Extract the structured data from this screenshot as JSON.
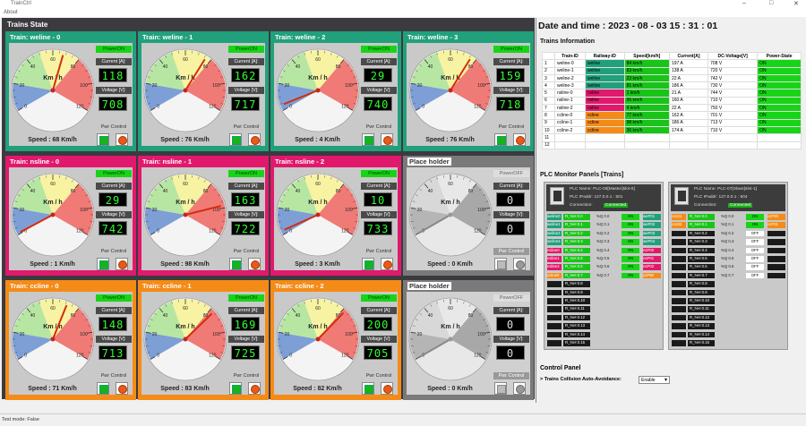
{
  "window": {
    "title": "TrainCtrl",
    "menu": "About",
    "min": "–",
    "max": "□",
    "close": "✕"
  },
  "trains_state_title": "Trains State",
  "colors": {
    "weline": "#21a07c",
    "nsline": "#e1196c",
    "ccline": "#f58b17",
    "placeholder": "#7a7a7a"
  },
  "gauge_labels": {
    "unit": "Km / h",
    "ticks": [
      "0",
      "20",
      "40",
      "60",
      "80",
      "100",
      "120"
    ]
  },
  "labels": {
    "current": "Current [A]:",
    "voltage": "Voltage [V]:",
    "pwr": "Pwr Control",
    "speed_prefix": "Speed : "
  },
  "cards": [
    {
      "title": "Train: weline - 0",
      "power": "PowerON",
      "current": "118",
      "voltage": "708",
      "speed": "68 Km/h",
      "speed_value": 68,
      "line": "weline",
      "on": true
    },
    {
      "title": "Train: weline - 1",
      "power": "PowerON",
      "current": "162",
      "voltage": "717",
      "speed": "76 Km/h",
      "speed_value": 76,
      "line": "weline",
      "on": true
    },
    {
      "title": "Train: weline - 2",
      "power": "PowerON",
      "current": "29",
      "voltage": "740",
      "speed": "4 Km/h",
      "speed_value": 4,
      "line": "weline",
      "on": true
    },
    {
      "title": "Train: weline - 3",
      "power": "PowerON",
      "current": "159",
      "voltage": "718",
      "speed": "76 Km/h",
      "speed_value": 76,
      "line": "weline",
      "on": true
    },
    {
      "title": "Train: nsline - 0",
      "power": "PowerON",
      "current": "29",
      "voltage": "742",
      "speed": "1 Km/h",
      "speed_value": 1,
      "line": "nsline",
      "on": true
    },
    {
      "title": "Train: nsline - 1",
      "power": "PowerON",
      "current": "163",
      "voltage": "722",
      "speed": "98 Km/h",
      "speed_value": 98,
      "line": "nsline",
      "on": true
    },
    {
      "title": "Train: nsline - 2",
      "power": "PowerON",
      "current": "10",
      "voltage": "733",
      "speed": "3 Km/h",
      "speed_value": 3,
      "line": "nsline",
      "on": true
    },
    {
      "title": "Place holder",
      "power": "PowerOFF",
      "current": "0",
      "voltage": "0",
      "speed": "0 Km/h",
      "speed_value": 0,
      "line": "placeholder",
      "on": false
    },
    {
      "title": "Train: ccline - 0",
      "power": "PowerON",
      "current": "148",
      "voltage": "713",
      "speed": "71 Km/h",
      "speed_value": 71,
      "line": "ccline",
      "on": true
    },
    {
      "title": "Train: ccline - 1",
      "power": "PowerON",
      "current": "169",
      "voltage": "725",
      "speed": "83 Km/h",
      "speed_value": 83,
      "line": "ccline",
      "on": true
    },
    {
      "title": "Train: ccline - 2",
      "power": "PowerON",
      "current": "200",
      "voltage": "705",
      "speed": "82 Km/h",
      "speed_value": 82,
      "line": "ccline",
      "on": true
    },
    {
      "title": "Place holder",
      "power": "PowerOFF",
      "current": "0",
      "voltage": "0",
      "speed": "0 Km/h",
      "speed_value": 0,
      "line": "placeholder",
      "on": false
    }
  ],
  "datetime": "Date and time :  2023 - 08 - 03 15 : 31 : 01",
  "trains_info_title": "Trains Information",
  "table": {
    "headers": [
      "",
      "Train-ID",
      "Railway-ID",
      "Speed[km/h]",
      "Current[A]",
      "DC-Voltage[V]",
      "Power-State"
    ],
    "rows": [
      [
        "1",
        "weline-0",
        "weline",
        "84 km/h",
        "197 A",
        "708 V",
        "ON"
      ],
      [
        "2",
        "weline-1",
        "weline",
        "83 km/h",
        "138 A",
        "720 V",
        "ON"
      ],
      [
        "3",
        "weline-2",
        "weline",
        "23 km/h",
        "22 A",
        "742 V",
        "ON"
      ],
      [
        "4",
        "weline-3",
        "weline",
        "81 km/h",
        "186 A",
        "730 V",
        "ON"
      ],
      [
        "5",
        "nsline-0",
        "nsline",
        "1 km/h",
        "21 A",
        "744 V",
        "ON"
      ],
      [
        "6",
        "nsline-1",
        "nsline",
        "96 km/h",
        "160 A",
        "710 V",
        "ON"
      ],
      [
        "7",
        "nsline-2",
        "nsline",
        "4 km/h",
        "22 A",
        "750 V",
        "ON"
      ],
      [
        "8",
        "ccline-0",
        "ccline",
        "77 km/h",
        "162 A",
        "701 V",
        "ON"
      ],
      [
        "9",
        "ccline-1",
        "ccline",
        "98 km/h",
        "186 A",
        "713 V",
        "ON"
      ],
      [
        "10",
        "ccline-2",
        "ccline",
        "36 km/h",
        "174 A",
        "710 V",
        "ON"
      ],
      [
        "11",
        "",
        "",
        "",
        "",
        "",
        ""
      ],
      [
        "12",
        "",
        "",
        "",
        "",
        "",
        ""
      ]
    ]
  },
  "plc_title": "PLC Monitor Panels [Trains]",
  "plc_panels": [
    {
      "name": "PLC Name:    PLC-06[Master]slot-0]",
      "ip": "PLC IPaddr:   127.0.0.1 : 501",
      "conn_label": "Connection:",
      "conn": "Connected",
      "left_tags": [
        "weline0",
        "weline1",
        "weline2",
        "weline3",
        "nsline0",
        "nsline1",
        "nsline2",
        "ccline0",
        "",
        "",
        "",
        "",
        "",
        "",
        "",
        ""
      ],
      "regs": [
        "R_%H 0.0",
        "R_%H 0.1",
        "R_%H 0.2",
        "R_%H 0.3",
        "R_%H 0.4",
        "R_%H 0.5",
        "R_%H 0.6",
        "R_%H 0.7",
        "R_%H 0.8",
        "R_%H 0.9",
        "R_%H 0.10",
        "R_%H 0.11",
        "R_%H 0.12",
        "R_%H 0.13",
        "R_%H 0.14",
        "R_%H 0.15"
      ],
      "q": [
        "%Q 0.0",
        "%Q 0.1",
        "%Q 0.2",
        "%Q 0.3",
        "%Q 0.4",
        "%Q 0.5",
        "%Q 0.6",
        "%Q 0.7"
      ],
      "qv": [
        "ON",
        "ON",
        "ON",
        "ON",
        "ON",
        "ON",
        "ON",
        "ON"
      ],
      "rtags": [
        "weP01",
        "weP02",
        "weP03",
        "weP04",
        "nsP00",
        "nsP01",
        "nsP02",
        "ccP00"
      ]
    },
    {
      "name": "PLC Name:    PLC-07[Slave]slot-1]",
      "ip": "PLC IPaddr:   127.0.0.1 : 504",
      "conn_label": "Connection:",
      "conn": "Connected",
      "left_tags": [
        "ccs01",
        "ccs02",
        "",
        "",
        "",
        "",
        "",
        "",
        "",
        "",
        "",
        "",
        "",
        "",
        "",
        ""
      ],
      "regs": [
        "R_%H 0.0",
        "R_%H 0.1",
        "R_%H 0.2",
        "R_%H 0.3",
        "R_%H 0.4",
        "R_%H 0.5",
        "R_%H 0.6",
        "R_%H 0.7",
        "R_%H 0.8",
        "R_%H 0.9",
        "R_%H 0.10",
        "R_%H 0.11",
        "R_%H 0.12",
        "R_%H 0.13",
        "R_%H 0.14",
        "R_%H 0.15"
      ],
      "q": [
        "%Q 0.0",
        "%Q 0.1",
        "%Q 0.2",
        "%Q 0.3",
        "%Q 0.4",
        "%Q 0.5",
        "%Q 0.6",
        "%Q 0.7"
      ],
      "qv": [
        "ON",
        "ON",
        "OFF",
        "OFF",
        "OFF",
        "OFF",
        "OFF",
        "OFF"
      ],
      "rtags": [
        "ccP00",
        "ccP01",
        "",
        "",
        "",
        "",
        "",
        ""
      ]
    }
  ],
  "control_panel": {
    "title": "Control Panel",
    "collision": "> Trains Collision Auto-Avoidance:",
    "value": "Enable"
  },
  "status": "Test mode: False"
}
